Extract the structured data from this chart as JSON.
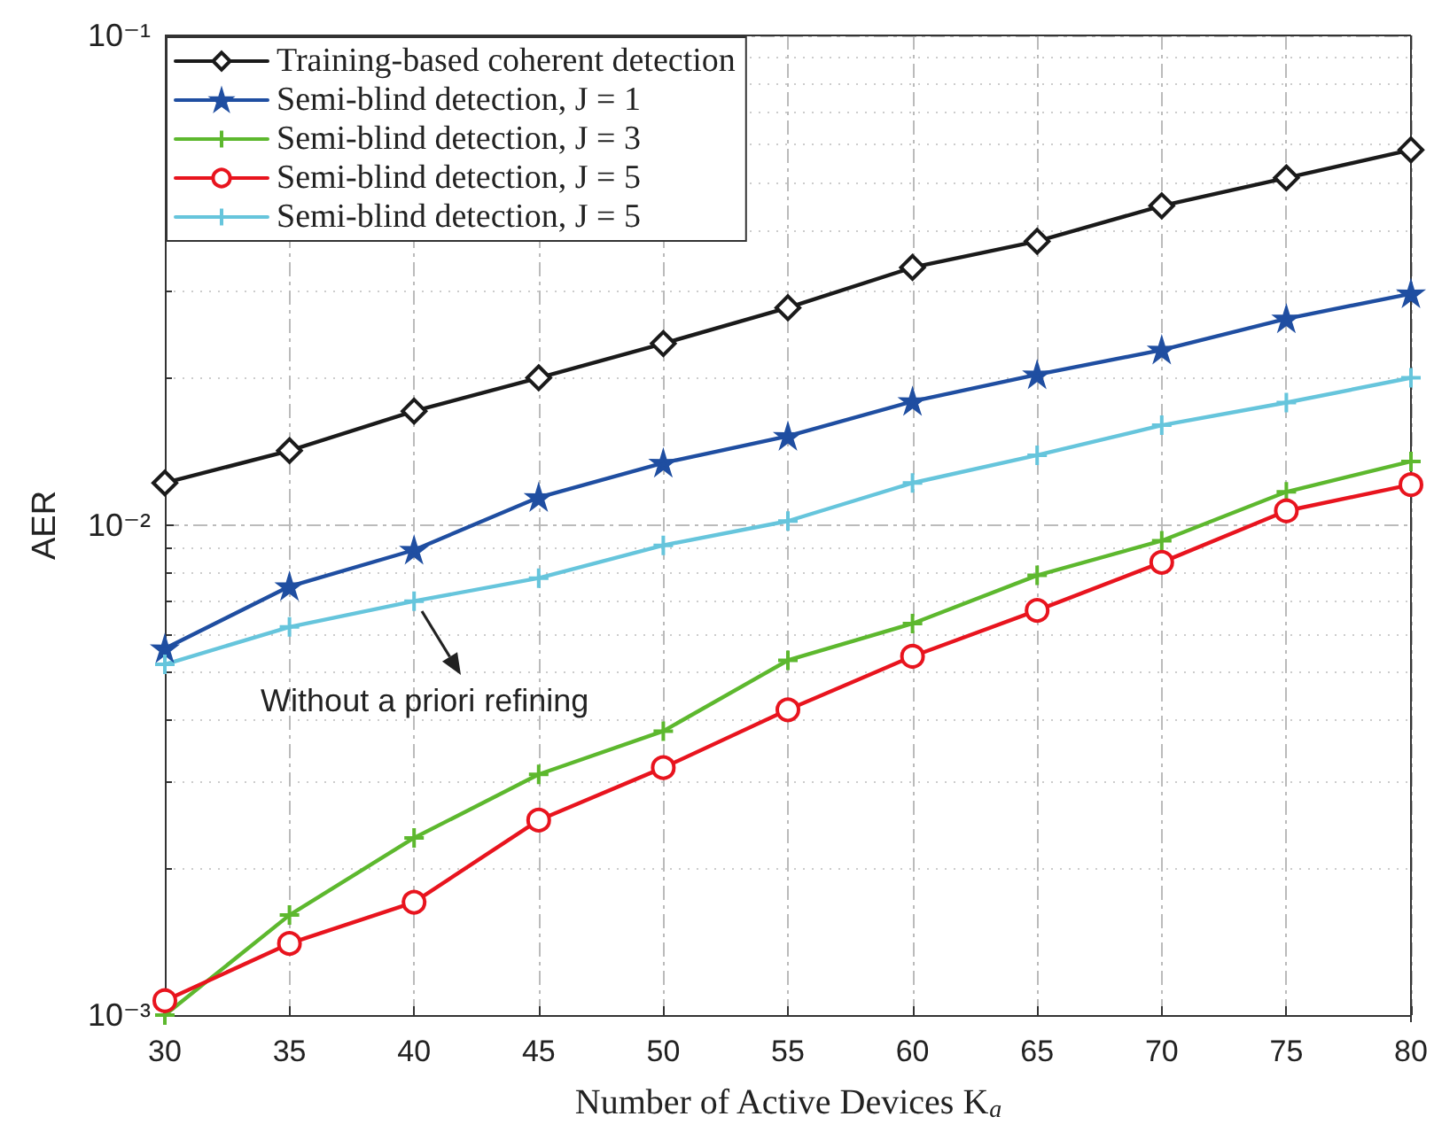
{
  "chart_data": {
    "type": "line",
    "xlabel": "Number of Active Devices K$_{a}$",
    "ylabel": "AER",
    "x": [
      30,
      35,
      40,
      45,
      50,
      55,
      60,
      65,
      70,
      75,
      80
    ],
    "xlim": [
      30,
      80
    ],
    "xticks": [
      30,
      35,
      40,
      45,
      50,
      55,
      60,
      65,
      70,
      75,
      80
    ],
    "ylim": [
      0.001,
      0.1
    ],
    "yticks": [
      {
        "value": 0.001,
        "label": "10⁻³"
      },
      {
        "value": 0.01,
        "label": "10⁻²"
      },
      {
        "value": 0.1,
        "label": "10⁻¹"
      }
    ],
    "log": "y",
    "grid": true,
    "legend": "top left",
    "line_style": "solid",
    "series": [
      {
        "name": "Training-based coherent detection",
        "color": "#1a1a1a",
        "marker": "diamond",
        "values": [
          0.0122,
          0.0142,
          0.0171,
          0.02,
          0.0235,
          0.0278,
          0.0336,
          0.038,
          0.0449,
          0.0512,
          0.0584
        ]
      },
      {
        "name": "Semi-blind detection, J = 1",
        "color": "#1f4ea1",
        "marker": "star",
        "values": [
          0.0056,
          0.0075,
          0.0089,
          0.0114,
          0.0134,
          0.0152,
          0.0179,
          0.0203,
          0.0228,
          0.0264,
          0.0297
        ]
      },
      {
        "name": "Semi-blind detection, J = 3",
        "color": "#5db82e",
        "marker": "cross",
        "values": [
          0.001,
          0.0016,
          0.0023,
          0.0031,
          0.0038,
          0.0053,
          0.0063,
          0.0079,
          0.0093,
          0.0117,
          0.0135
        ]
      },
      {
        "name": "Semi-blind detection, J = 5",
        "color": "#e8141e",
        "marker": "circle",
        "values": [
          0.00107,
          0.0014,
          0.0017,
          0.0025,
          0.0032,
          0.0042,
          0.0054,
          0.0067,
          0.0084,
          0.0107,
          0.0121
        ]
      },
      {
        "name": "Semi-blind detection, J = 5",
        "color": "#66c5dc",
        "marker": "cross",
        "values": [
          0.0052,
          0.0062,
          0.007,
          0.0078,
          0.0091,
          0.0102,
          0.0122,
          0.0139,
          0.016,
          0.0178,
          0.02
        ]
      }
    ],
    "annotations": [
      {
        "text": "Without a priori refining",
        "x": 40,
        "y": 0.007
      }
    ]
  }
}
